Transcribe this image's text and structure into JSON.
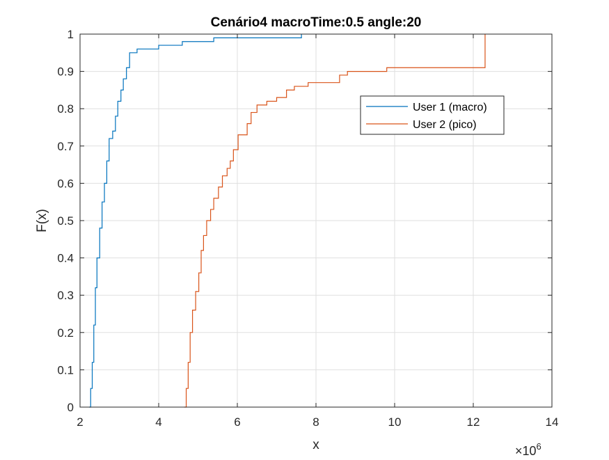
{
  "chart_data": {
    "type": "line",
    "title": "Cenário4 macroTime:0.5 angle:20",
    "xlabel": "x",
    "ylabel": "F(x)",
    "x_exponent_label": "×10",
    "x_exponent_value": "6",
    "xlim": [
      2,
      14
    ],
    "ylim": [
      0,
      1
    ],
    "xticks": [
      2,
      4,
      6,
      8,
      10,
      12,
      14
    ],
    "xtick_labels": [
      "2",
      "4",
      "6",
      "8",
      "10",
      "12",
      "14"
    ],
    "yticks": [
      0,
      0.1,
      0.2,
      0.3,
      0.4,
      0.5,
      0.6,
      0.7,
      0.8,
      0.9,
      1
    ],
    "ytick_labels": [
      "0",
      "0.1",
      "0.2",
      "0.3",
      "0.4",
      "0.5",
      "0.6",
      "0.7",
      "0.8",
      "0.9",
      "1"
    ],
    "grid": true,
    "legend_position": "upper-right-inside",
    "series": [
      {
        "name": "User 1 (macro)",
        "color": "#0072BD",
        "points": [
          [
            2.23,
            0
          ],
          [
            2.27,
            0.05
          ],
          [
            2.31,
            0.12
          ],
          [
            2.35,
            0.22
          ],
          [
            2.39,
            0.32
          ],
          [
            2.43,
            0.4
          ],
          [
            2.5,
            0.48
          ],
          [
            2.56,
            0.55
          ],
          [
            2.62,
            0.6
          ],
          [
            2.68,
            0.66
          ],
          [
            2.74,
            0.72
          ],
          [
            2.83,
            0.74
          ],
          [
            2.9,
            0.78
          ],
          [
            2.96,
            0.82
          ],
          [
            3.04,
            0.85
          ],
          [
            3.1,
            0.88
          ],
          [
            3.18,
            0.91
          ],
          [
            3.26,
            0.95
          ],
          [
            3.45,
            0.96
          ],
          [
            4.0,
            0.97
          ],
          [
            4.6,
            0.98
          ],
          [
            5.4,
            0.99
          ],
          [
            7.63,
            1.0
          ]
        ]
      },
      {
        "name": "User 2 (pico)",
        "color": "#D95319",
        "points": [
          [
            4.65,
            0
          ],
          [
            4.7,
            0.05
          ],
          [
            4.75,
            0.12
          ],
          [
            4.8,
            0.2
          ],
          [
            4.86,
            0.26
          ],
          [
            4.94,
            0.31
          ],
          [
            5.02,
            0.36
          ],
          [
            5.08,
            0.42
          ],
          [
            5.14,
            0.46
          ],
          [
            5.22,
            0.5
          ],
          [
            5.32,
            0.53
          ],
          [
            5.4,
            0.56
          ],
          [
            5.52,
            0.59
          ],
          [
            5.62,
            0.62
          ],
          [
            5.74,
            0.64
          ],
          [
            5.82,
            0.66
          ],
          [
            5.9,
            0.69
          ],
          [
            6.02,
            0.73
          ],
          [
            6.25,
            0.76
          ],
          [
            6.35,
            0.79
          ],
          [
            6.5,
            0.81
          ],
          [
            6.75,
            0.82
          ],
          [
            7.0,
            0.83
          ],
          [
            7.25,
            0.85
          ],
          [
            7.45,
            0.86
          ],
          [
            7.8,
            0.87
          ],
          [
            8.6,
            0.89
          ],
          [
            8.8,
            0.9
          ],
          [
            9.8,
            0.91
          ],
          [
            12.25,
            0.91
          ],
          [
            12.3,
            1.0
          ]
        ]
      }
    ]
  }
}
